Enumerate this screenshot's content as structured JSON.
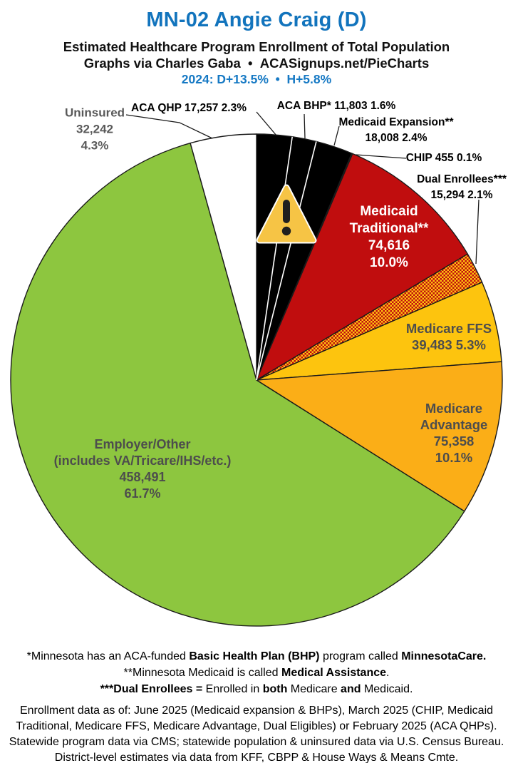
{
  "header": {
    "title": "MN-02 Angie Craig (D)",
    "subtitle": "Estimated Healthcare Program Enrollment of Total Population",
    "byline": "Graphs via Charles Gaba  •  ACASignups.net/PieCharts",
    "partisan": "2024: D+13.5%  •  H+5.8%"
  },
  "colors": {
    "title_blue": "#1274BD",
    "partisan_blue": "#1679C4",
    "uninsured_label_gray": "#595959",
    "slice_label_gray": "#4D4D4D",
    "black_slice": "#000000",
    "medicaid_red": "#C00D0E",
    "chip_yellow": "#FFC510",
    "medicare_ffs_gold": "#FDC40E",
    "medicare_adv_amber": "#FBAE17",
    "employer_green": "#8DC63F",
    "warning_yellow": "#F6C445"
  },
  "chart_data": {
    "type": "pie",
    "title": "Estimated Healthcare Program Enrollment of Total Population",
    "start_angle": "12 o'clock",
    "direction": "clockwise",
    "slices": [
      {
        "id": "aca-qhp",
        "label": "ACA QHP",
        "value": 17257,
        "pct": 2.3,
        "color": "#000000"
      },
      {
        "id": "aca-bhp",
        "label": "ACA BHP*",
        "value": 11803,
        "pct": 1.6,
        "color": "#000000"
      },
      {
        "id": "medicaid-expansion",
        "label": "Medicaid Expansion**",
        "value": 18008,
        "pct": 2.4,
        "color": "#000000"
      },
      {
        "id": "chip",
        "label": "CHIP",
        "value": 455,
        "pct": 0.1,
        "color": "#FFC510"
      },
      {
        "id": "medicaid-traditional",
        "label": "Medicaid Traditional**",
        "value": 74616,
        "pct": 10.0,
        "color": "#C00D0E"
      },
      {
        "id": "dual-enrollees",
        "label": "Dual Enrollees***",
        "value": 15294,
        "pct": 2.1,
        "color": "pattern:dual-hatch"
      },
      {
        "id": "medicare-ffs",
        "label": "Medicare FFS",
        "value": 39483,
        "pct": 5.3,
        "color": "#FDC40E"
      },
      {
        "id": "medicare-advantage",
        "label": "Medicare Advantage",
        "value": 75358,
        "pct": 10.1,
        "color": "#FBAE17"
      },
      {
        "id": "employer-other",
        "label": "Employer/Other (includes VA/Tricare/IHS/etc.)",
        "value": 458491,
        "pct": 61.7,
        "color": "#8DC63F"
      },
      {
        "id": "uninsured",
        "label": "Uninsured",
        "value": 32242,
        "pct": 4.3,
        "color": "#FFFFFF"
      }
    ]
  },
  "labels": {
    "uninsured": [
      "Uninsured",
      "32,242",
      "4.3%"
    ],
    "qhp": "ACA QHP 17,257 2.3%",
    "bhp": "ACA BHP* 11,803 1.6%",
    "expansion": [
      "Medicaid Expansion**",
      "18,008 2.4%"
    ],
    "chip": "CHIP 455 0.1%",
    "dual": [
      "Dual Enrollees***",
      "15,294 2.1%"
    ],
    "trad": [
      "Medicaid",
      "Traditional**",
      "74,616",
      "10.0%"
    ],
    "ffs": [
      "Medicare FFS",
      "39,483 5.3%"
    ],
    "adv": [
      "Medicare",
      "Advantage",
      "75,358",
      "10.1%"
    ],
    "employer": [
      "Employer/Other",
      "(includes VA/Tricare/IHS/etc.)",
      "458,491",
      "61.7%"
    ]
  },
  "footnotes": {
    "l1a": "*Minnesota has an ACA-funded ",
    "l1b": "Basic Health Plan (BHP)",
    "l1c": " program called ",
    "l1d": "MinnesotaCare.",
    "l2a": "**Minnesota Medicaid is called ",
    "l2b": "Medical Assistance",
    "l2c": ".",
    "l3a": "***Dual Enrollees = ",
    "l3b": "Enrolled in ",
    "l3c": "both",
    "l3d": " Medicare ",
    "l3e": "and",
    "l3f": " Medicaid."
  },
  "source": {
    "l1": "Enrollment data as of: June 2025 (Medicaid expansion & BHPs), March 2025 (CHIP, Medicaid",
    "l2": "Traditional, Medicare FFS, Medicare Advantage, Dual Eligibles) or February 2025 (ACA QHPs).",
    "l3": "Statewide program data via CMS; statewide population & uninsured data via U.S. Census Bureau.",
    "l4": "District-level estimates via data from KFF, CBPP & House Ways & Means Cmte."
  }
}
